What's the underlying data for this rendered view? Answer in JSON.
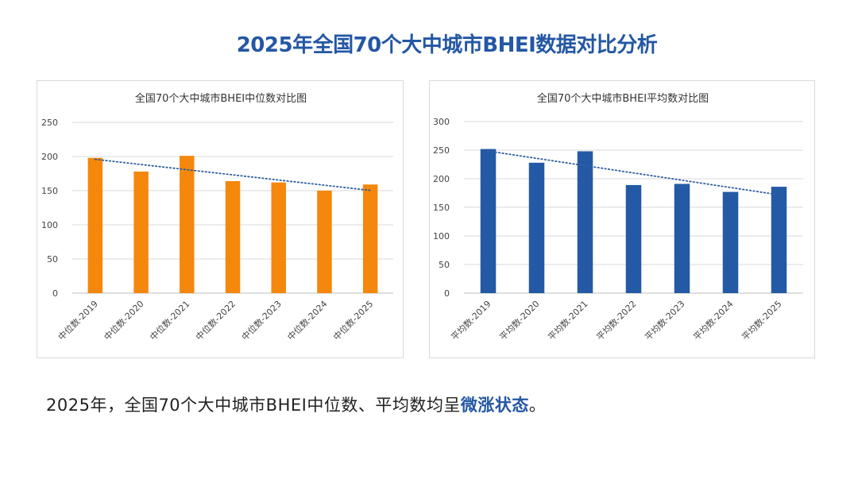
{
  "page": {
    "title": "2025年全国70个大中城市BHEI数据对比分析",
    "summary_prefix": "2025年，全国70个大中城市BHEI中位数、平均数均呈",
    "summary_highlight": "微涨状态",
    "summary_suffix": "。"
  },
  "colors": {
    "accent": "#2457A4",
    "median_bar": "#F5870C",
    "mean_bar": "#245AA5",
    "trendline": "#2E5E9E"
  },
  "chart_data": [
    {
      "type": "bar",
      "title": "全国70个大中城市BHEI中位数对比图",
      "categories": [
        "中位数-2019",
        "中位数-2020",
        "中位数-2021",
        "中位数-2022",
        "中位数-2023",
        "中位数-2024",
        "中位数-2025"
      ],
      "values": [
        198,
        178,
        201,
        164,
        162,
        150,
        159
      ],
      "ylim": [
        0,
        250
      ],
      "yticks": [
        0,
        50,
        100,
        150,
        200,
        250
      ],
      "trendline": "linear",
      "grid": true,
      "xlabel": "",
      "ylabel": ""
    },
    {
      "type": "bar",
      "title": "全国70个大中城市BHEI平均数对比图",
      "categories": [
        "平均数-2019",
        "平均数-2020",
        "平均数-2021",
        "平均数-2022",
        "平均数-2023",
        "平均数-2024",
        "平均数-2025"
      ],
      "values": [
        252,
        228,
        248,
        189,
        191,
        177,
        186
      ],
      "ylim": [
        0,
        300
      ],
      "yticks": [
        0,
        50,
        100,
        150,
        200,
        250,
        300
      ],
      "trendline": "linear",
      "grid": true,
      "xlabel": "",
      "ylabel": ""
    }
  ]
}
